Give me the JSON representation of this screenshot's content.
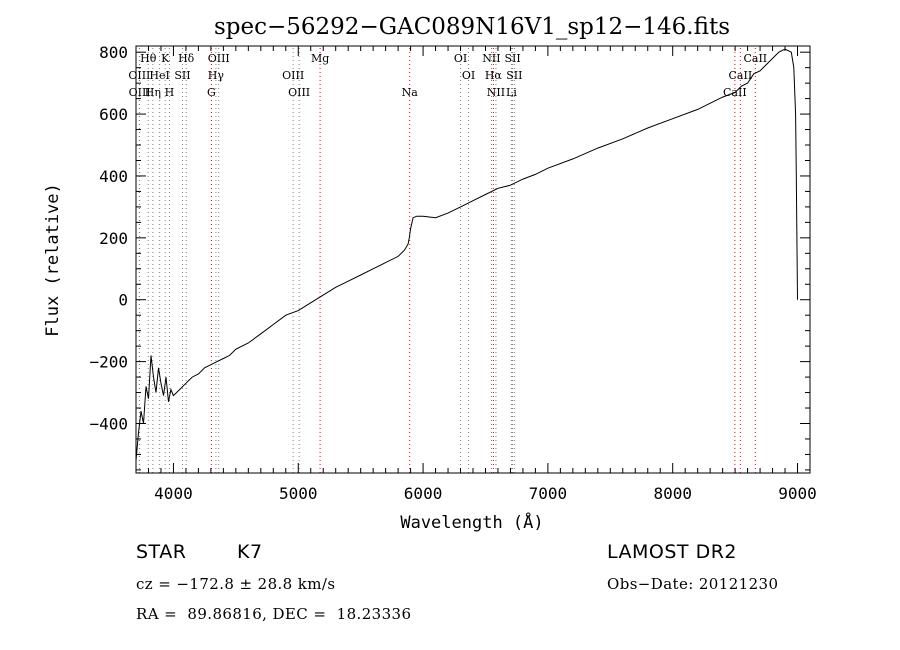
{
  "chart_data": {
    "type": "line",
    "title": "spec−56292−GAC089N16V1_sp12−146.fits",
    "xlabel": "Wavelength (Å)",
    "ylabel": "Flux (relative)",
    "xlim": [
      3700,
      9100
    ],
    "ylim": [
      -560,
      820
    ],
    "xticks": [
      4000,
      5000,
      6000,
      7000,
      8000,
      9000
    ],
    "yticks": [
      -400,
      -200,
      0,
      200,
      400,
      600,
      800
    ],
    "xtick_labels": [
      "4000",
      "5000",
      "6000",
      "7000",
      "8000",
      "9000"
    ],
    "ytick_labels": [
      "−400",
      "−200",
      "0",
      "200",
      "400",
      "600",
      "800"
    ],
    "series": [
      {
        "x": [
          3700,
          3720,
          3740,
          3760,
          3780,
          3800,
          3820,
          3840,
          3860,
          3880,
          3900,
          3920,
          3940,
          3960,
          3980,
          4000,
          4050,
          4100,
          4150,
          4200,
          4250,
          4300,
          4350,
          4400,
          4450,
          4500,
          4600,
          4700,
          4800,
          4900,
          5000,
          5100,
          5200,
          5300,
          5400,
          5500,
          5600,
          5700,
          5800,
          5850,
          5880,
          5890,
          5900,
          5920,
          5950,
          6000,
          6100,
          6200,
          6300,
          6400,
          6500,
          6600,
          6700,
          6800,
          6900,
          7000,
          7200,
          7400,
          7600,
          7800,
          8000,
          8200,
          8400,
          8500,
          8550,
          8600,
          8650,
          8700,
          8750,
          8800,
          8850,
          8900,
          8950,
          8970,
          8985,
          8990,
          9000
        ],
        "y": [
          -520,
          -430,
          -360,
          -400,
          -280,
          -320,
          -180,
          -250,
          -300,
          -220,
          -270,
          -310,
          -250,
          -330,
          -290,
          -310,
          -290,
          -270,
          -250,
          -240,
          -220,
          -210,
          -200,
          -190,
          -180,
          -160,
          -140,
          -110,
          -80,
          -50,
          -35,
          -10,
          15,
          40,
          60,
          80,
          100,
          120,
          140,
          160,
          180,
          200,
          230,
          265,
          270,
          270,
          265,
          280,
          300,
          320,
          340,
          360,
          370,
          390,
          405,
          425,
          455,
          490,
          520,
          555,
          585,
          615,
          655,
          670,
          690,
          700,
          730,
          740,
          760,
          780,
          800,
          810,
          800,
          750,
          600,
          400,
          0
        ]
      }
    ],
    "line_markers": [
      {
        "name": "Hθ",
        "wl": 3798,
        "row": 1,
        "color": "#808080"
      },
      {
        "name": "K",
        "wl": 3934,
        "row": 1,
        "color": "#808080"
      },
      {
        "name": "Hδ",
        "wl": 4102,
        "row": 1,
        "color": "#808080"
      },
      {
        "name": "OIII",
        "wl": 4363,
        "row": 1,
        "color": "#808080"
      },
      {
        "name": "Mg",
        "wl": 5175,
        "row": 1,
        "color": "#ff0000"
      },
      {
        "name": "OI",
        "wl": 6300,
        "row": 1,
        "color": "#808080"
      },
      {
        "name": "NII",
        "wl": 6548,
        "row": 1,
        "color": "#808080"
      },
      {
        "name": "SII",
        "wl": 6717,
        "row": 1,
        "color": "#808080"
      },
      {
        "name": "CaII",
        "wl": 8662,
        "row": 1,
        "color": "#ff0000"
      },
      {
        "name": "OIII",
        "wl": 3727,
        "row": 2,
        "color": "#808080"
      },
      {
        "name": "HeI",
        "wl": 3889,
        "row": 2,
        "color": "#808080"
      },
      {
        "name": "SII",
        "wl": 4072,
        "row": 2,
        "color": "#808080"
      },
      {
        "name": "Hγ",
        "wl": 4340,
        "row": 2,
        "color": "#808080"
      },
      {
        "name": "OIII",
        "wl": 4959,
        "row": 2,
        "color": "#808080"
      },
      {
        "name": "OI",
        "wl": 6364,
        "row": 2,
        "color": "#808080"
      },
      {
        "name": "Hα",
        "wl": 6563,
        "row": 2,
        "color": "#ff0000"
      },
      {
        "name": "SII",
        "wl": 6731,
        "row": 2,
        "color": "#808080"
      },
      {
        "name": "CaII",
        "wl": 8542,
        "row": 2,
        "color": "#ff0000"
      },
      {
        "name": "OIII",
        "wl": 3729,
        "row": 3,
        "color": "#808080"
      },
      {
        "name": "Hη",
        "wl": 3835,
        "row": 3,
        "color": "#808080"
      },
      {
        "name": "H",
        "wl": 3968,
        "row": 3,
        "color": "#808080"
      },
      {
        "name": "G",
        "wl": 4304,
        "row": 3,
        "color": "#ff0000"
      },
      {
        "name": "OIII",
        "wl": 5007,
        "row": 3,
        "color": "#808080"
      },
      {
        "name": "Na",
        "wl": 5893,
        "row": 3,
        "color": "#ff0000"
      },
      {
        "name": "NII",
        "wl": 6584,
        "row": 3,
        "color": "#808080"
      },
      {
        "name": "Li",
        "wl": 6708,
        "row": 3,
        "color": "#808080"
      },
      {
        "name": "CaII",
        "wl": 8498,
        "row": 3,
        "color": "#ff0000"
      }
    ],
    "grid": false,
    "legend": false
  },
  "info": {
    "class_label": "STAR",
    "subclass_label": "K7",
    "survey": "LAMOST DR2",
    "redshift": "cz = −172.8 ± 28.8 km/s",
    "obs_date": "Obs−Date: 20121230",
    "coords": "RA =  89.86816, DEC =  18.23336"
  }
}
